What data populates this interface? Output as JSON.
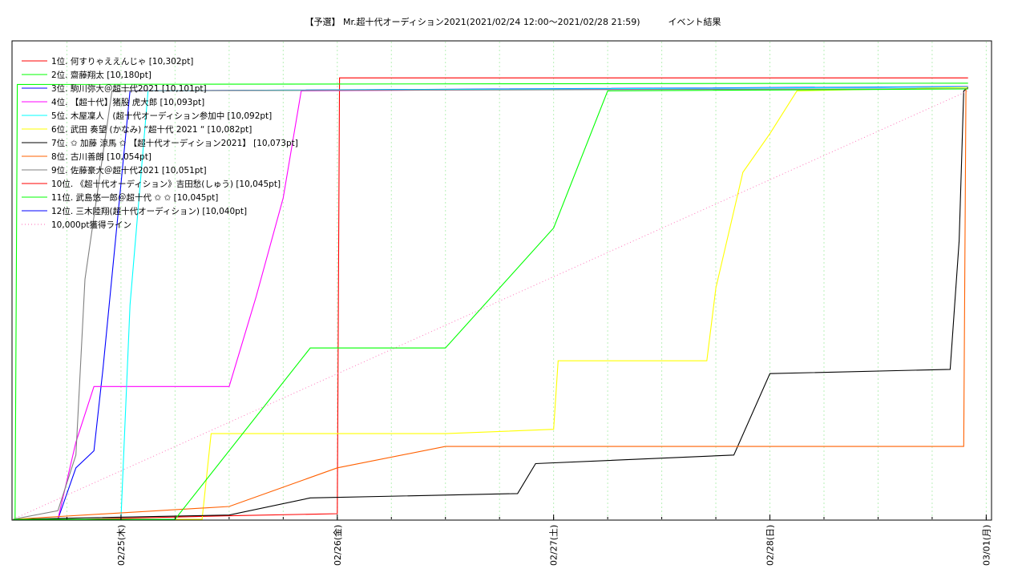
{
  "chart_data": {
    "type": "line",
    "title": "【予選】 Mr.超十代オーディション2021(2021/02/24 12:00〜2021/02/28 21:59)          イベント結果",
    "xlabel": "",
    "ylabel": "",
    "x_tick_labels": [
      "02/25(木)",
      "02/26(金)",
      "02/27(土)",
      "02/28(日)",
      "03/01(月)"
    ],
    "x_range": [
      "2021/02/24 12:00",
      "2021/03/01 00:30"
    ],
    "ylim": [
      0,
      10400
    ],
    "y_tick_labels": [],
    "grid": "vertical dotted",
    "legend_position": "top-left",
    "series": [
      {
        "name": "1位. 何すりゃええんじゃ [10,302pt]",
        "color": "#ff0000",
        "points": [
          [
            "2021/02/24 12:00",
            0
          ],
          [
            "2021/02/24 20:00",
            0
          ],
          [
            "2021/02/25 11:30",
            80
          ],
          [
            "2021/02/26 00:00",
            130
          ],
          [
            "2021/02/26 00:15",
            10302
          ],
          [
            "2021/02/28 21:59",
            10302
          ]
        ]
      },
      {
        "name": "2位. 齋藤翔太 [10,180pt]",
        "color": "#00ff00",
        "points": [
          [
            "2021/02/24 12:00",
            0
          ],
          [
            "2021/02/24 12:15",
            0
          ],
          [
            "2021/02/24 12:30",
            10150
          ],
          [
            "2021/02/28 21:59",
            10180
          ]
        ]
      },
      {
        "name": "3位. 駒川弥大＠超十代2021 [10,101pt]",
        "color": "#0000ff",
        "points": [
          [
            "2021/02/24 12:00",
            0
          ],
          [
            "2021/02/24 17:00",
            0
          ],
          [
            "2021/02/24 19:00",
            1200
          ],
          [
            "2021/02/24 21:00",
            1600
          ],
          [
            "2021/02/24 22:00",
            3500
          ],
          [
            "2021/02/25 01:00",
            10000
          ],
          [
            "2021/02/28 21:59",
            10101
          ]
        ]
      },
      {
        "name": "4位. 【超十代】猪股 虎大郎 [10,093pt]",
        "color": "#ff00ff",
        "points": [
          [
            "2021/02/24 12:00",
            0
          ],
          [
            "2021/02/24 17:00",
            0
          ],
          [
            "2021/02/24 19:00",
            1800
          ],
          [
            "2021/02/24 21:00",
            3100
          ],
          [
            "2021/02/25 12:00",
            3100
          ],
          [
            "2021/02/25 15:00",
            5200
          ],
          [
            "2021/02/25 18:00",
            7500
          ],
          [
            "2021/02/25 20:00",
            10000
          ],
          [
            "2021/02/28 21:59",
            10093
          ]
        ]
      },
      {
        "name": "5位. 木屋凜人　(超十代オーディション参加中 [10,092pt]",
        "color": "#00ffff",
        "points": [
          [
            "2021/02/24 12:00",
            0
          ],
          [
            "2021/02/25 00:00",
            0
          ],
          [
            "2021/02/25 01:00",
            5000
          ],
          [
            "2021/02/25 03:00",
            10000
          ],
          [
            "2021/02/28 21:59",
            10092
          ]
        ]
      },
      {
        "name": "6位. 武田 奏望 (かなみ) “超十代 2021 “ [10,082pt]",
        "color": "#ffff00",
        "points": [
          [
            "2021/02/24 12:00",
            0
          ],
          [
            "2021/02/25 09:00",
            0
          ],
          [
            "2021/02/25 10:00",
            2000
          ],
          [
            "2021/02/26 12:00",
            2000
          ],
          [
            "2021/02/27 00:00",
            2100
          ],
          [
            "2021/02/27 00:30",
            3700
          ],
          [
            "2021/02/27 17:00",
            3700
          ],
          [
            "2021/02/27 18:00",
            5400
          ],
          [
            "2021/02/27 21:00",
            8100
          ],
          [
            "2021/02/28 00:00",
            9000
          ],
          [
            "2021/02/28 03:00",
            10000
          ],
          [
            "2021/02/28 21:59",
            10082
          ]
        ]
      },
      {
        "name": "7位. ✩ 加藤 涼馬 ✩ 【超十代オーディション2021】 [10,073pt]",
        "color": "#000000",
        "points": [
          [
            "2021/02/24 12:00",
            0
          ],
          [
            "2021/02/25 12:00",
            100
          ],
          [
            "2021/02/25 21:00",
            500
          ],
          [
            "2021/02/26 20:00",
            600
          ],
          [
            "2021/02/26 22:00",
            1300
          ],
          [
            "2021/02/27 20:00",
            1500
          ],
          [
            "2021/02/28 00:00",
            3400
          ],
          [
            "2021/02/28 20:00",
            3500
          ],
          [
            "2021/02/28 21:00",
            6500
          ],
          [
            "2021/02/28 21:30",
            10000
          ],
          [
            "2021/02/28 21:59",
            10073
          ]
        ]
      },
      {
        "name": "8位. 古川善朗 [10,054pt]",
        "color": "#ff6000",
        "points": [
          [
            "2021/02/24 12:00",
            0
          ],
          [
            "2021/02/25 12:00",
            300
          ],
          [
            "2021/02/26 00:00",
            1200
          ],
          [
            "2021/02/26 12:00",
            1700
          ],
          [
            "2021/02/28 21:30",
            1700
          ],
          [
            "2021/02/28 21:45",
            10054
          ],
          [
            "2021/02/28 21:59",
            10054
          ]
        ]
      },
      {
        "name": "9位. 佐藤豪大＠超十代2021 [10,051pt]",
        "color": "#808080",
        "points": [
          [
            "2021/02/24 12:00",
            0
          ],
          [
            "2021/02/24 17:00",
            200
          ],
          [
            "2021/02/24 19:00",
            1500
          ],
          [
            "2021/02/24 20:00",
            5600
          ],
          [
            "2021/02/24 23:00",
            10000
          ],
          [
            "2021/02/28 21:59",
            10051
          ]
        ]
      },
      {
        "name": "10位. 《超十代オーディション》吉田愁(しゅう) [10,045pt]",
        "color": "#ff0000",
        "points": []
      },
      {
        "name": "11位. 武島悠一郎＠超十代 ✩ ✩ [10,045pt]",
        "color": "#00ff00",
        "points": [
          [
            "2021/02/24 12:00",
            0
          ],
          [
            "2021/02/25 06:00",
            0
          ],
          [
            "2021/02/25 21:00",
            4000
          ],
          [
            "2021/02/26 12:00",
            4000
          ],
          [
            "2021/02/27 00:00",
            6800
          ],
          [
            "2021/02/27 06:00",
            10000
          ],
          [
            "2021/02/28 21:59",
            10045
          ]
        ]
      },
      {
        "name": "12位. 三木陸翔(超十代オーディション) [10,040pt]",
        "color": "#0000ff",
        "points": []
      },
      {
        "name": "10,000pt獲得ライン",
        "color": "#ff69b4",
        "dashed": true,
        "points": [
          [
            "2021/02/24 12:00",
            0
          ],
          [
            "2021/02/28 21:59",
            10000
          ]
        ]
      }
    ]
  }
}
